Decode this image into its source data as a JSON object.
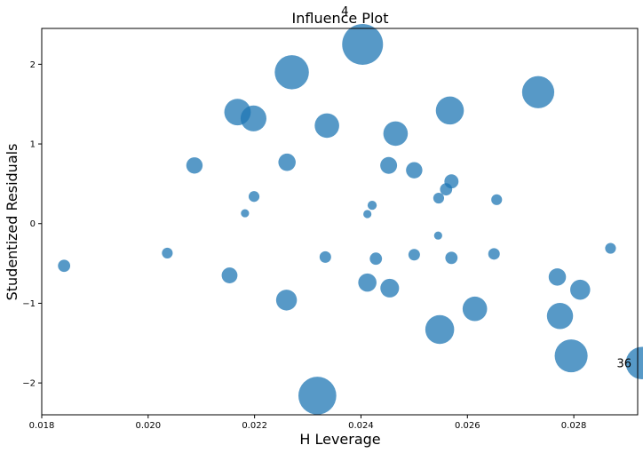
{
  "chart_data": {
    "type": "scatter",
    "title": "Influence Plot",
    "xlabel": "H Leverage",
    "ylabel": "Studentized Residuals",
    "xlim": [
      0.018,
      0.0292
    ],
    "ylim": [
      -2.4,
      2.45
    ],
    "x_ticks": [
      0.018,
      0.02,
      0.022,
      0.024,
      0.026,
      0.028
    ],
    "x_tick_labels": [
      "0.018",
      "0.020",
      "0.022",
      "0.024",
      "0.026",
      "0.028"
    ],
    "y_ticks": [
      -2,
      -1,
      0,
      1,
      2
    ],
    "y_tick_labels": [
      "−2",
      "−1",
      "0",
      "1",
      "2"
    ],
    "grid": false,
    "marker_color": "#1f77b4",
    "marker_alpha": 0.75,
    "size_note": "marker area proportional to Cook's distance (relative)",
    "points": [
      {
        "x": 0.02403,
        "y": 2.25,
        "s": 1.0,
        "label": "4"
      },
      {
        "x": 0.0227,
        "y": 1.9,
        "s": 0.7
      },
      {
        "x": 0.02733,
        "y": 1.65,
        "s": 0.62
      },
      {
        "x": 0.02168,
        "y": 1.4,
        "s": 0.42
      },
      {
        "x": 0.02198,
        "y": 1.32,
        "s": 0.4
      },
      {
        "x": 0.02567,
        "y": 1.42,
        "s": 0.47
      },
      {
        "x": 0.02336,
        "y": 1.23,
        "s": 0.36
      },
      {
        "x": 0.02465,
        "y": 1.13,
        "s": 0.36
      },
      {
        "x": 0.02087,
        "y": 0.73,
        "s": 0.16
      },
      {
        "x": 0.02261,
        "y": 0.77,
        "s": 0.18
      },
      {
        "x": 0.02452,
        "y": 0.73,
        "s": 0.17
      },
      {
        "x": 0.025,
        "y": 0.67,
        "s": 0.16
      },
      {
        "x": 0.0257,
        "y": 0.53,
        "s": 0.12
      },
      {
        "x": 0.0256,
        "y": 0.43,
        "s": 0.09
      },
      {
        "x": 0.02546,
        "y": 0.32,
        "s": 0.07
      },
      {
        "x": 0.02655,
        "y": 0.3,
        "s": 0.07
      },
      {
        "x": 0.02199,
        "y": 0.34,
        "s": 0.07
      },
      {
        "x": 0.02421,
        "y": 0.23,
        "s": 0.05
      },
      {
        "x": 0.02182,
        "y": 0.13,
        "s": 0.04
      },
      {
        "x": 0.02412,
        "y": 0.12,
        "s": 0.04
      },
      {
        "x": 0.02545,
        "y": -0.15,
        "s": 0.04
      },
      {
        "x": 0.01842,
        "y": -0.53,
        "s": 0.09
      },
      {
        "x": 0.02036,
        "y": -0.37,
        "s": 0.07
      },
      {
        "x": 0.02333,
        "y": -0.42,
        "s": 0.08
      },
      {
        "x": 0.02428,
        "y": -0.44,
        "s": 0.09
      },
      {
        "x": 0.025,
        "y": -0.39,
        "s": 0.08
      },
      {
        "x": 0.0257,
        "y": -0.43,
        "s": 0.09
      },
      {
        "x": 0.0265,
        "y": -0.38,
        "s": 0.08
      },
      {
        "x": 0.02869,
        "y": -0.31,
        "s": 0.07
      },
      {
        "x": 0.02153,
        "y": -0.65,
        "s": 0.15
      },
      {
        "x": 0.02412,
        "y": -0.74,
        "s": 0.2
      },
      {
        "x": 0.02454,
        "y": -0.81,
        "s": 0.21
      },
      {
        "x": 0.02769,
        "y": -0.67,
        "s": 0.18
      },
      {
        "x": 0.02812,
        "y": -0.83,
        "s": 0.24
      },
      {
        "x": 0.0226,
        "y": -0.96,
        "s": 0.26
      },
      {
        "x": 0.02614,
        "y": -1.07,
        "s": 0.36
      },
      {
        "x": 0.02774,
        "y": -1.16,
        "s": 0.41
      },
      {
        "x": 0.02548,
        "y": -1.33,
        "s": 0.5
      },
      {
        "x": 0.02928,
        "y": -1.75,
        "s": 0.63,
        "label": "36"
      },
      {
        "x": 0.02795,
        "y": -1.66,
        "s": 0.65
      },
      {
        "x": 0.02318,
        "y": -2.16,
        "s": 0.86
      }
    ]
  }
}
